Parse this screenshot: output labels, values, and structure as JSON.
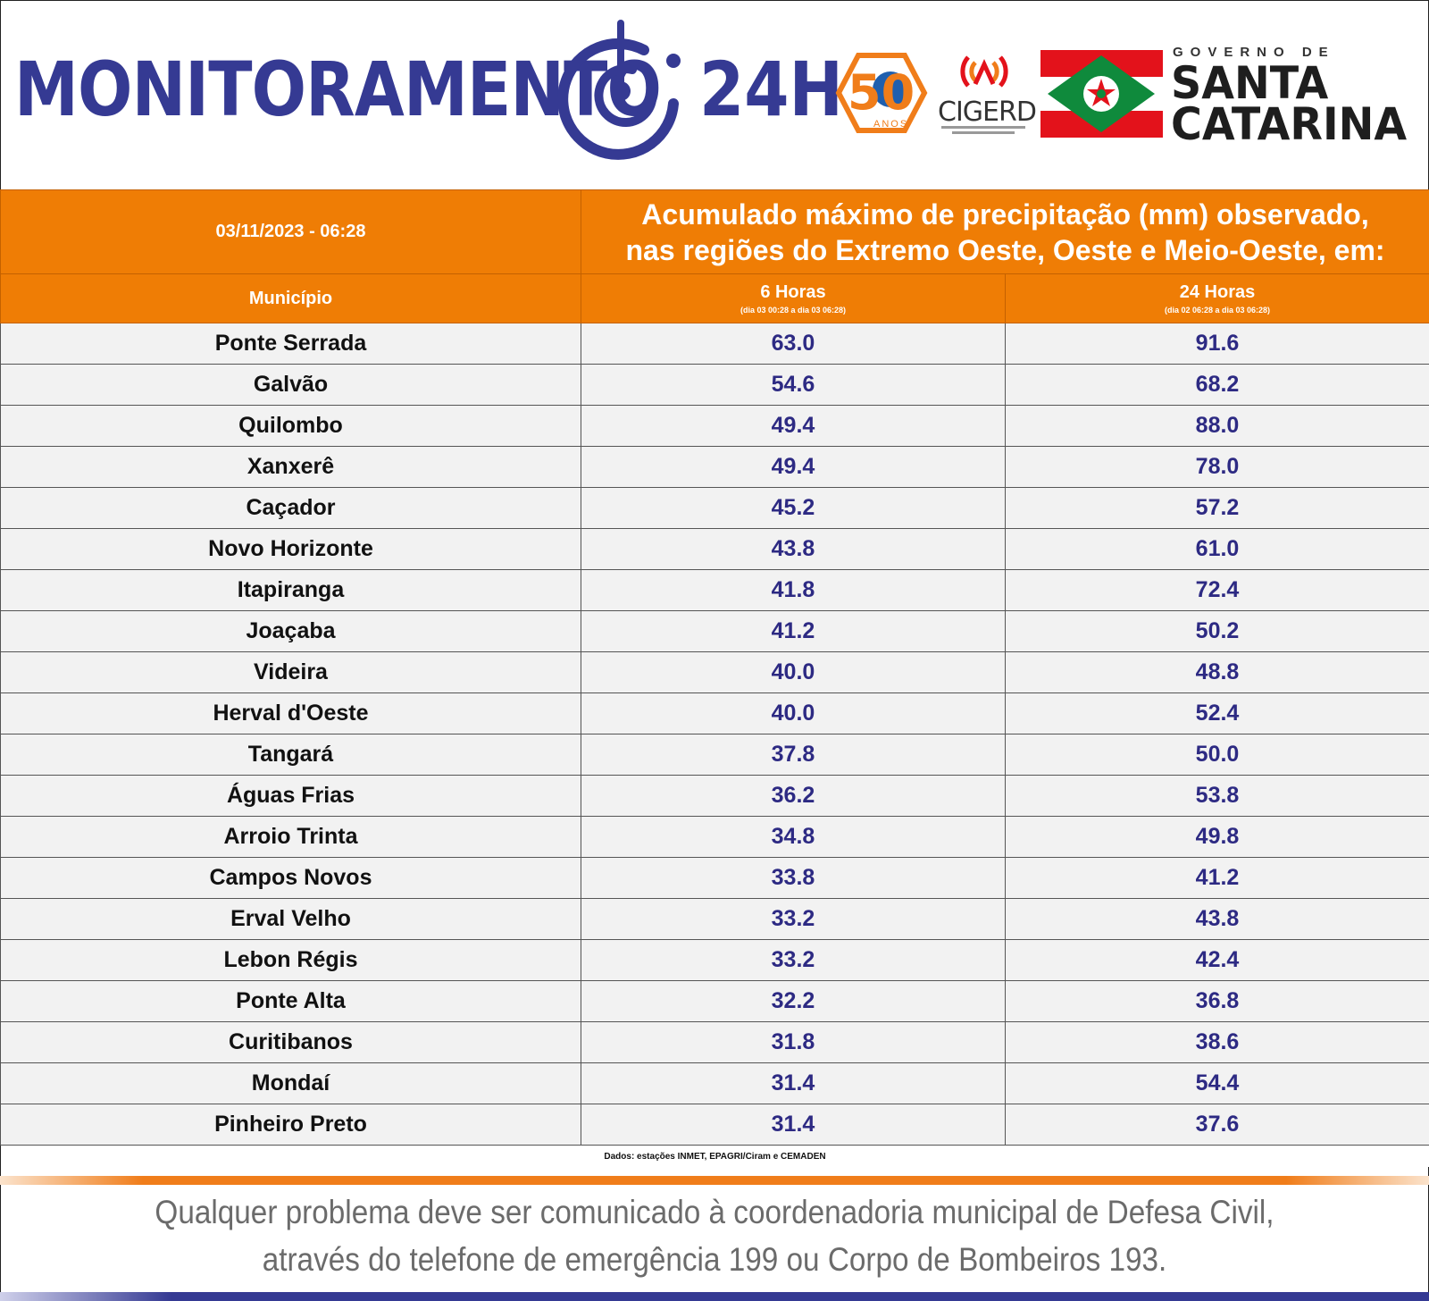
{
  "header": {
    "brand_title": "MONITORAMENTO",
    "brand_suffix": "24H",
    "badge_50_number": "50",
    "badge_50_label": "ANOS",
    "cigerd_label": "CIGERD",
    "gov_label": "GOVERNO DE",
    "state_line1": "SANTA",
    "state_line2": "CATARINA",
    "colors": {
      "brand_blue": "#353a93",
      "accent_orange": "#ef7d05",
      "flag_red": "#e3121b",
      "flag_green": "#0f8a3c"
    },
    "icons": [
      "target-24h-icon",
      "fifty-years-badge-icon",
      "cigerd-signal-icon",
      "santa-catarina-flag-icon"
    ]
  },
  "table": {
    "date": "03/11/2023 - 06:28",
    "title_line1": "Acumulado máximo de precipitação (mm) observado,",
    "title_line2": "nas regiões do Extremo Oeste, Oeste e Meio-Oeste, em:",
    "col_municipio": "Município",
    "col_6h": "6 Horas",
    "col_6h_range": "(dia 03 00:28 a dia 03 06:28)",
    "col_24h": "24 Horas",
    "col_24h_range": "(dia 02 06:28 a dia 03 06:28)",
    "rows": [
      {
        "city": "Ponte Serrada",
        "h6": "63.0",
        "h24": "91.6"
      },
      {
        "city": "Galvão",
        "h6": "54.6",
        "h24": "68.2"
      },
      {
        "city": "Quilombo",
        "h6": "49.4",
        "h24": "88.0"
      },
      {
        "city": "Xanxerê",
        "h6": "49.4",
        "h24": "78.0"
      },
      {
        "city": "Caçador",
        "h6": "45.2",
        "h24": "57.2"
      },
      {
        "city": "Novo Horizonte",
        "h6": "43.8",
        "h24": "61.0"
      },
      {
        "city": "Itapiranga",
        "h6": "41.8",
        "h24": "72.4"
      },
      {
        "city": "Joaçaba",
        "h6": "41.2",
        "h24": "50.2"
      },
      {
        "city": "Videira",
        "h6": "40.0",
        "h24": "48.8"
      },
      {
        "city": "Herval d'Oeste",
        "h6": "40.0",
        "h24": "52.4"
      },
      {
        "city": "Tangará",
        "h6": "37.8",
        "h24": "50.0"
      },
      {
        "city": "Águas Frias",
        "h6": "36.2",
        "h24": "53.8"
      },
      {
        "city": "Arroio Trinta",
        "h6": "34.8",
        "h24": "49.8"
      },
      {
        "city": "Campos Novos",
        "h6": "33.8",
        "h24": "41.2"
      },
      {
        "city": "Erval Velho",
        "h6": "33.2",
        "h24": "43.8"
      },
      {
        "city": "Lebon Régis",
        "h6": "33.2",
        "h24": "42.4"
      },
      {
        "city": "Ponte Alta",
        "h6": "32.2",
        "h24": "36.8"
      },
      {
        "city": "Curitibanos",
        "h6": "31.8",
        "h24": "38.6"
      },
      {
        "city": "Mondaí",
        "h6": "31.4",
        "h24": "54.4"
      },
      {
        "city": "Pinheiro Preto",
        "h6": "31.4",
        "h24": "37.6"
      }
    ],
    "source": "Dados: estações INMET, EPAGRI/Ciram e CEMADEN"
  },
  "footer": {
    "line1": "Qualquer problema deve ser comunicado à coordenadoria municipal de Defesa Civil,",
    "line2": "através do telefone de emergência 199 ou Corpo de Bombeiros 193."
  }
}
